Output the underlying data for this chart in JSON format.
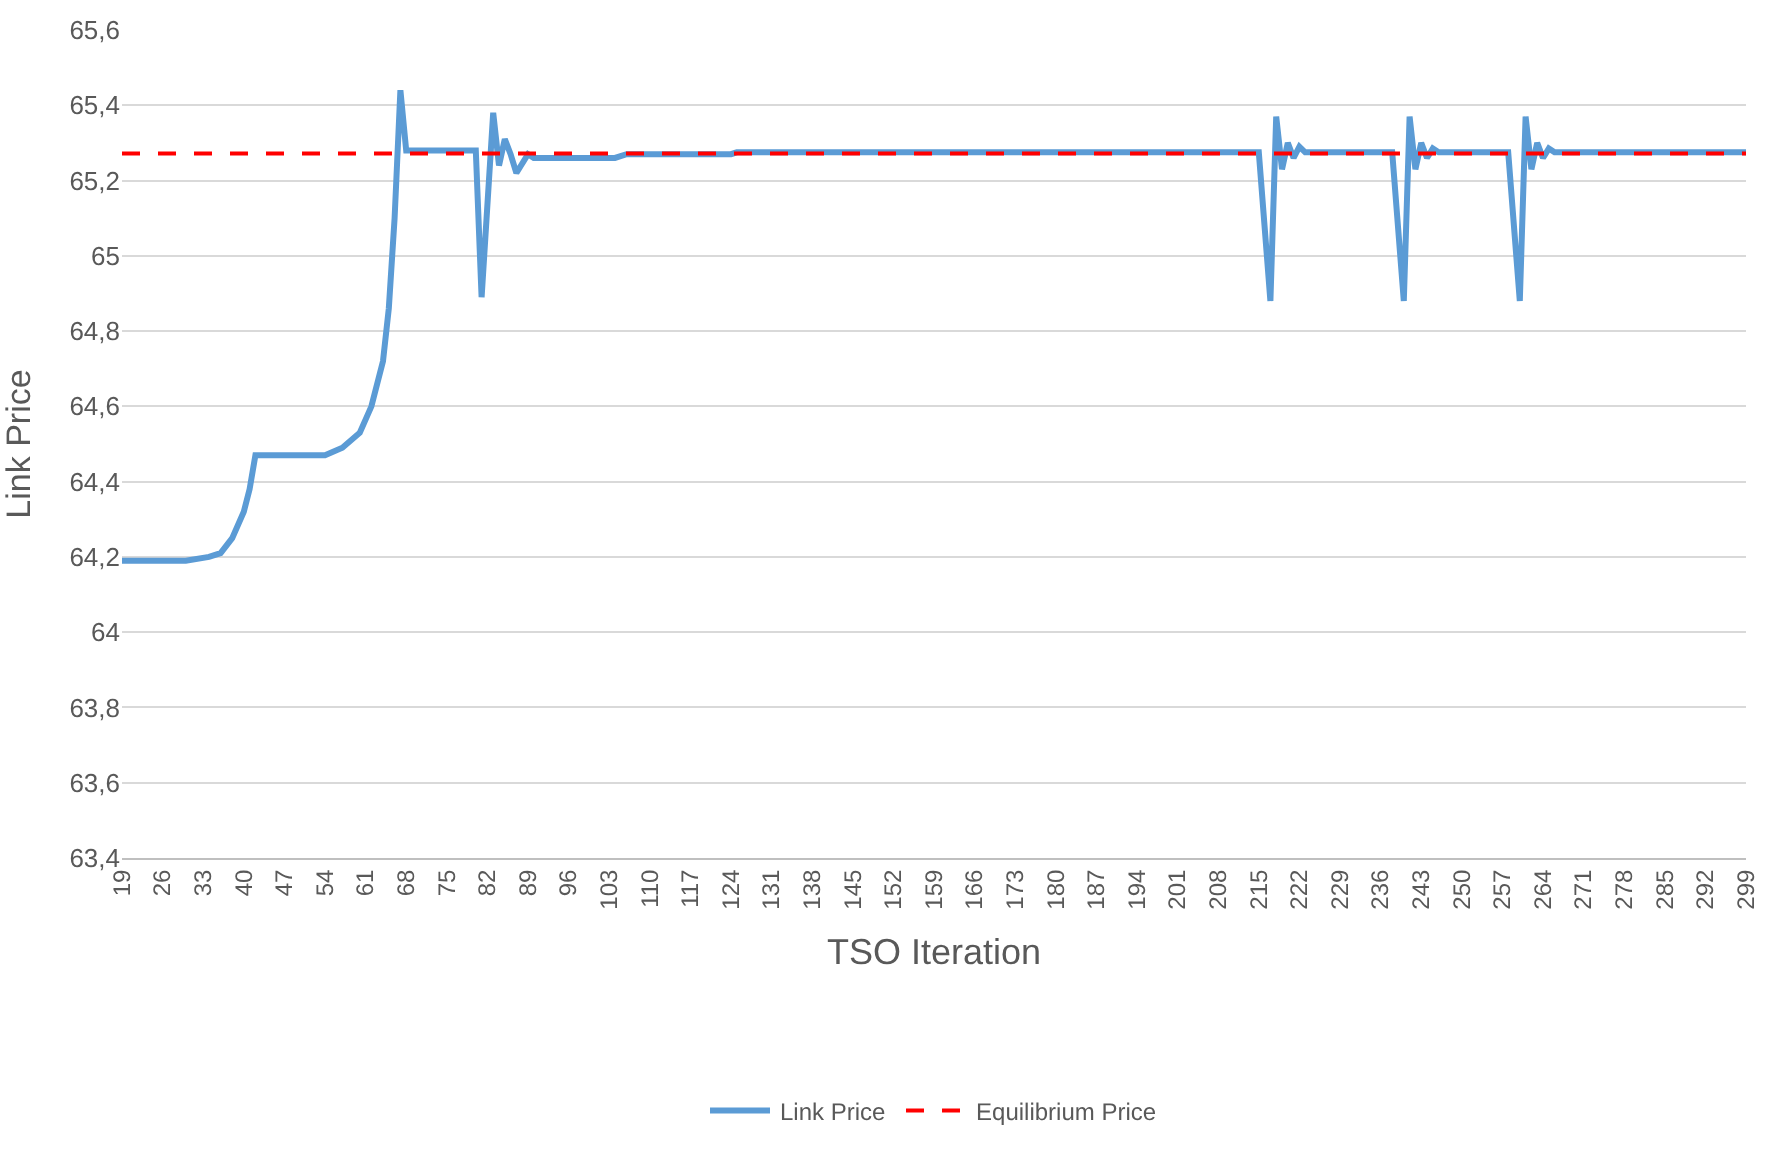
{
  "chart_data": {
    "type": "line",
    "xlabel": "TSO Iteration",
    "ylabel": "Link Price",
    "xlim": [
      19,
      299
    ],
    "xticks": [
      19,
      26,
      33,
      40,
      47,
      54,
      61,
      68,
      75,
      82,
      89,
      96,
      103,
      110,
      117,
      124,
      131,
      138,
      145,
      152,
      159,
      166,
      173,
      180,
      187,
      194,
      201,
      208,
      215,
      222,
      229,
      236,
      243,
      250,
      257,
      264,
      271,
      278,
      285,
      292,
      299
    ],
    "ylim": [
      63.4,
      65.6
    ],
    "yticks": [
      {
        "value": 63.4,
        "label": "63,4"
      },
      {
        "value": 63.6,
        "label": "63,6"
      },
      {
        "value": 63.8,
        "label": "63,8"
      },
      64,
      {
        "value": 64.2,
        "label": "64,2"
      },
      {
        "value": 64.4,
        "label": "64,4"
      },
      {
        "value": 64.6,
        "label": "64,6"
      },
      {
        "value": 64.8,
        "label": "64,8"
      },
      65,
      {
        "value": 65.2,
        "label": "65,2"
      },
      {
        "value": 65.4,
        "label": "65,4"
      },
      {
        "value": 65.6,
        "label": "65,6"
      }
    ],
    "grid": "y",
    "legend": "bottom",
    "marker": "none",
    "series": [
      {
        "name": "Link Price",
        "color": "#5b9bd5",
        "line_style": "solid",
        "x": [
          19,
          30,
          34,
          36,
          38,
          40,
          41,
          42,
          54,
          57,
          60,
          62,
          64,
          65,
          66,
          67,
          68,
          80,
          81,
          83,
          84,
          85,
          86,
          87,
          89,
          90,
          104,
          106,
          124,
          125,
          215,
          217,
          218,
          219,
          220,
          221,
          222,
          223,
          238,
          240,
          241,
          242,
          243,
          244,
          245,
          246,
          258,
          260,
          261,
          262,
          263,
          264,
          265,
          266,
          299
        ],
        "values": [
          64.19,
          64.19,
          64.2,
          64.21,
          64.25,
          64.32,
          64.38,
          64.47,
          64.47,
          64.49,
          64.53,
          64.6,
          64.72,
          64.86,
          65.1,
          65.44,
          65.28,
          65.28,
          64.89,
          65.38,
          65.24,
          65.31,
          65.27,
          65.22,
          65.27,
          65.26,
          65.26,
          65.27,
          65.27,
          65.275,
          65.275,
          64.88,
          65.37,
          65.23,
          65.3,
          65.26,
          65.29,
          65.275,
          65.275,
          64.88,
          65.37,
          65.23,
          65.3,
          65.26,
          65.285,
          65.275,
          65.275,
          64.88,
          65.37,
          65.23,
          65.3,
          65.26,
          65.285,
          65.275,
          65.275
        ]
      },
      {
        "name": "Equilibrium Price",
        "color": "#ff0000",
        "line_style": "dashed",
        "x": [
          19,
          299
        ],
        "values": [
          65.272,
          65.272
        ]
      }
    ]
  }
}
